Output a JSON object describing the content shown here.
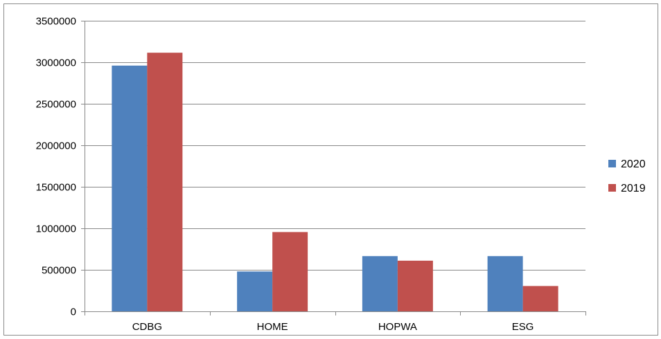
{
  "chart_data": {
    "type": "bar",
    "categories": [
      "CDBG",
      "HOME",
      "HOPWA",
      "ESG"
    ],
    "series": [
      {
        "name": "2020",
        "values": [
          2960000,
          480000,
          665000,
          665000
        ],
        "color": "#4F81BD"
      },
      {
        "name": "2019",
        "values": [
          3115000,
          955000,
          610000,
          305000
        ],
        "color": "#C0504D"
      }
    ],
    "y_ticks": [
      "0",
      "500000",
      "1000000",
      "1500000",
      "2000000",
      "2500000",
      "3000000",
      "3500000"
    ],
    "ylim": [
      0,
      3500000
    ],
    "grid": true,
    "legend_position": "right",
    "title": "",
    "xlabel": "",
    "ylabel": ""
  }
}
